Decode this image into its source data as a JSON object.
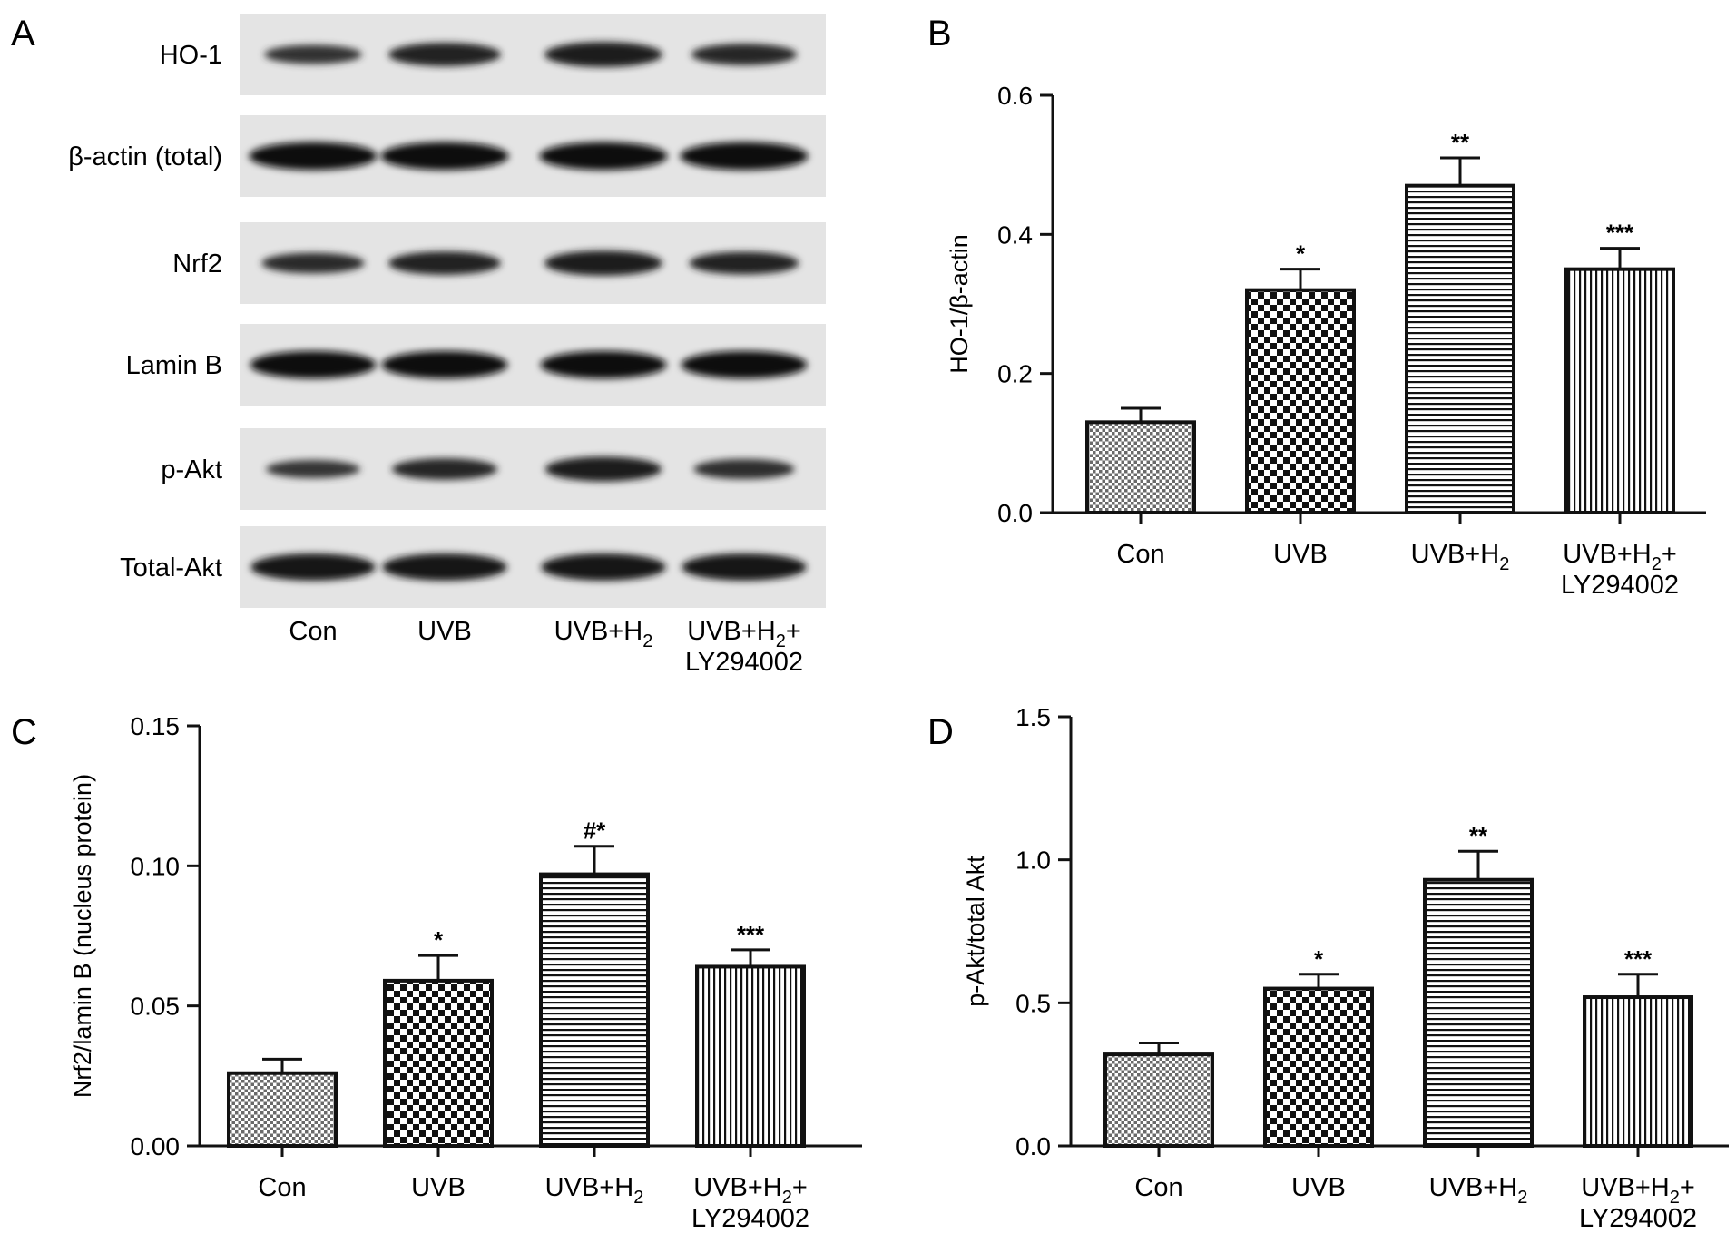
{
  "panels": {
    "a": "A",
    "b": "B",
    "c": "C",
    "d": "D"
  },
  "blot": {
    "rows": [
      {
        "label": "HO-1",
        "intensity": [
          0.5,
          0.72,
          0.8,
          0.62
        ]
      },
      {
        "label": "β-actin (total)",
        "intensity": [
          0.95,
          0.95,
          0.95,
          0.95
        ]
      },
      {
        "label": "Nrf2",
        "intensity": [
          0.58,
          0.72,
          0.8,
          0.68
        ]
      },
      {
        "label": "Lamin B",
        "intensity": [
          0.92,
          0.92,
          0.92,
          0.92
        ]
      },
      {
        "label": "p-Akt",
        "intensity": [
          0.45,
          0.62,
          0.78,
          0.55
        ]
      },
      {
        "label": "Total-Akt",
        "intensity": [
          0.9,
          0.9,
          0.9,
          0.9
        ]
      }
    ],
    "lanes": [
      {
        "line1": "Con",
        "sub": "",
        "tail": "",
        "line2": ""
      },
      {
        "line1": "UVB",
        "sub": "",
        "tail": "",
        "line2": ""
      },
      {
        "line1": "UVB+H",
        "sub": "2",
        "tail": "",
        "line2": ""
      },
      {
        "line1": "UVB+H",
        "sub": "2",
        "tail": "+",
        "line2": "LY294002"
      }
    ]
  },
  "chart_data": [
    {
      "panel": "B",
      "type": "bar",
      "categories": [
        "Con",
        "UVB",
        "UVB+H2",
        "UVB+H2+ LY294002"
      ],
      "values": [
        0.13,
        0.32,
        0.47,
        0.35
      ],
      "errors": [
        0.02,
        0.03,
        0.04,
        0.03
      ],
      "significance": [
        "",
        "*",
        "**",
        "***"
      ],
      "ylabel": "HO-1/β-actin",
      "ylim": [
        0,
        0.6
      ],
      "yticks": [
        "0.0",
        "0.2",
        "0.4",
        "0.6"
      ]
    },
    {
      "panel": "C",
      "type": "bar",
      "categories": [
        "Con",
        "UVB",
        "UVB+H2",
        "UVB+H2+ LY294002"
      ],
      "values": [
        0.026,
        0.059,
        0.097,
        0.064
      ],
      "errors": [
        0.005,
        0.009,
        0.01,
        0.006
      ],
      "significance": [
        "",
        "*",
        "#*",
        "***"
      ],
      "ylabel": "Nrf2/lamin B (nucleus protein)",
      "ylim": [
        0,
        0.15
      ],
      "yticks": [
        "0.00",
        "0.05",
        "0.10",
        "0.15"
      ]
    },
    {
      "panel": "D",
      "type": "bar",
      "categories": [
        "Con",
        "UVB",
        "UVB+H2",
        "UVB+H2+ LY294002"
      ],
      "values": [
        0.32,
        0.55,
        0.93,
        0.52
      ],
      "errors": [
        0.04,
        0.05,
        0.1,
        0.08
      ],
      "significance": [
        "",
        "*",
        "**",
        "***"
      ],
      "ylabel": "p-Akt/total Akt",
      "ylim": [
        0,
        1.5
      ],
      "yticks": [
        "0.0",
        "0.5",
        "1.0",
        "1.5"
      ]
    }
  ],
  "patterns": [
    "fine-crosshatch",
    "checkerboard",
    "horizontal-lines",
    "vertical-lines"
  ]
}
